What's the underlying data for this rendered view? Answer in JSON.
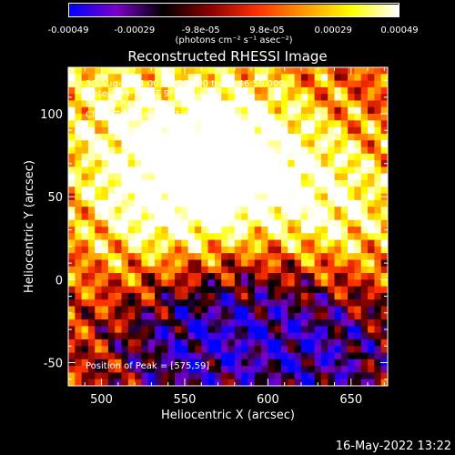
{
  "colorbar": {
    "tick_labels": [
      "-0.00049",
      "-0.00029",
      "-9.8e-05",
      "9.8e-05",
      "0.00029",
      "0.00049"
    ],
    "unit_text": "(photons cm⁻² s⁻¹ asec⁻²)",
    "range": [
      -0.00049,
      0.00049
    ],
    "colors": [
      "#0000ff",
      "#7a00c8",
      "#000000",
      "#8b0000",
      "#ff3000",
      "#ff9900",
      "#ffff00",
      "#ffffff"
    ]
  },
  "overlay": {
    "line1": "30-Aug-2014 00:40:56.000 to 00:46:56.000",
    "line2": "Detectors: 3F 6F 9F, Att 0",
    "line3": "Energy Range: 13.0 - 25.0 keV",
    "line4": "Clean     Total counts: 1.97E+03",
    "peak": "Position of Peak = [575,59]"
  },
  "footer": {
    "date": "16-May-2022 13:22"
  },
  "chart_data": {
    "type": "heatmap",
    "title": "Reconstructed RHESSI Image",
    "xlabel": "Heliocentric X (arcsec)",
    "ylabel": "Heliocentric Y (arcsec)",
    "xlim": [
      480,
      672
    ],
    "ylim": [
      -64,
      128
    ],
    "xticks": [
      500,
      550,
      600,
      650
    ],
    "yticks": [
      -50,
      0,
      50,
      100
    ],
    "peak": [
      575,
      59
    ],
    "bright_regions": [
      {
        "x": 580,
        "y": 80,
        "level": 0.9
      },
      {
        "x": 560,
        "y": 60,
        "level": 0.85
      },
      {
        "x": 640,
        "y": 40,
        "level": 0.9
      },
      {
        "x": 500,
        "y": 110,
        "level": 0.6
      },
      {
        "x": 520,
        "y": 40,
        "level": 0.55
      }
    ],
    "dim_regions": [
      {
        "x": 550,
        "y": -40,
        "level": -0.9
      },
      {
        "x": 640,
        "y": -45,
        "level": -0.8
      },
      {
        "x": 600,
        "y": -10,
        "level": -0.5
      }
    ]
  }
}
